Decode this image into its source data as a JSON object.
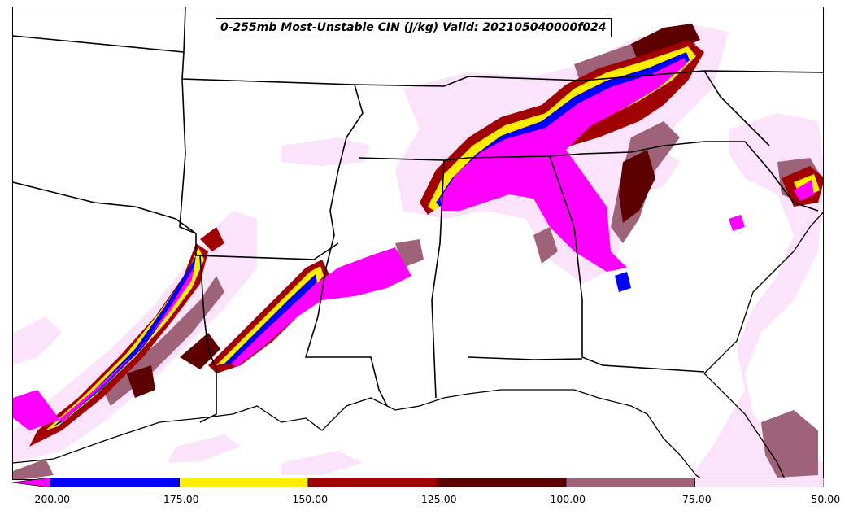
{
  "title": "0-255mb Most-Unstable CIN (J/kg) Valid: 202105040000f024",
  "colors": {
    "magenta": "#ff00ff",
    "blue": "#0000ff",
    "yellow": "#ffee00",
    "dark_red": "#a00000",
    "maroon": "#5c0000",
    "mauve": "#9e6378",
    "light_pink": "#fbe4fb",
    "boundary": "#000000"
  },
  "colorbar": {
    "extend": "min",
    "bins": [
      {
        "from": -200,
        "to": -175,
        "color": "#0000ff"
      },
      {
        "from": -175,
        "to": -150,
        "color": "#ffee00"
      },
      {
        "from": -150,
        "to": -125,
        "color": "#a00000"
      },
      {
        "from": -125,
        "to": -100,
        "color": "#5c0000"
      },
      {
        "from": -100,
        "to": -75,
        "color": "#9e6378"
      },
      {
        "from": -75,
        "to": -50,
        "color": "#fbe4fb"
      }
    ],
    "under_color": "#ff00ff",
    "labels": [
      "-200.00",
      "-175.00",
      "-150.00",
      "-125.00",
      "-100.00",
      "-75.00",
      "-50.00"
    ]
  }
}
